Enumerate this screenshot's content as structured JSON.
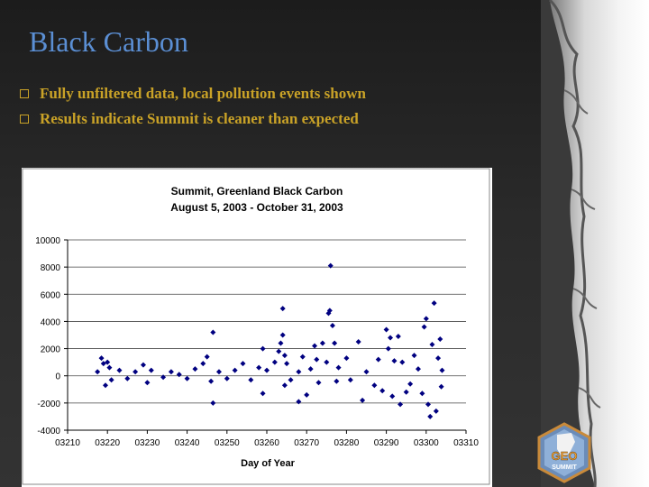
{
  "slide": {
    "title": "Black Carbon",
    "bullets": [
      "Fully unfiltered data, local pollution events shown",
      "Results indicate Summit is cleaner than expected"
    ]
  },
  "logo": {
    "word_top": "GEO",
    "word_bottom": "SUMMIT"
  },
  "colors": {
    "title": "#5b8fd4",
    "bullet": "#c9a227",
    "series": "#000080"
  },
  "chart_data": {
    "type": "scatter",
    "title": "Summit, Greenland Black Carbon",
    "subtitle": "August 5, 2003 - October 31, 2003",
    "xlabel": "Day of Year",
    "ylabel": "",
    "xlim": [
      3210,
      3310
    ],
    "ylim": [
      -4000,
      10000
    ],
    "x_ticks": [
      3210,
      3220,
      3230,
      3240,
      3250,
      3260,
      3270,
      3280,
      3290,
      3300,
      3310
    ],
    "x_tick_labels": [
      "03210",
      "03220",
      "03230",
      "03240",
      "03250",
      "03260",
      "03270",
      "03280",
      "03290",
      "03300",
      "03310"
    ],
    "y_ticks": [
      -4000,
      -2000,
      0,
      2000,
      4000,
      6000,
      8000,
      10000
    ],
    "y_tick_labels": [
      "-4000",
      "-2000",
      "0",
      "2000",
      "4000",
      "6000",
      "8000",
      "10000"
    ],
    "grid": "horizontal",
    "legend": "none",
    "series": [
      {
        "marker": "diamond",
        "points": [
          [
            3217.5,
            300
          ],
          [
            3218.5,
            1300
          ],
          [
            3219,
            900
          ],
          [
            3219.5,
            -700
          ],
          [
            3220,
            1000
          ],
          [
            3220.5,
            600
          ],
          [
            3221,
            -300
          ],
          [
            3223,
            400
          ],
          [
            3225,
            -200
          ],
          [
            3227,
            300
          ],
          [
            3229,
            800
          ],
          [
            3230,
            -500
          ],
          [
            3231,
            400
          ],
          [
            3234,
            -100
          ],
          [
            3236,
            300
          ],
          [
            3238,
            100
          ],
          [
            3240,
            -200
          ],
          [
            3242,
            500
          ],
          [
            3244,
            900
          ],
          [
            3245,
            1400
          ],
          [
            3246,
            -400
          ],
          [
            3246.5,
            3200
          ],
          [
            3246.5,
            -2000
          ],
          [
            3248,
            300
          ],
          [
            3250,
            -200
          ],
          [
            3252,
            400
          ],
          [
            3254,
            900
          ],
          [
            3256,
            -300
          ],
          [
            3258,
            600
          ],
          [
            3259,
            2000
          ],
          [
            3259,
            -1300
          ],
          [
            3260,
            400
          ],
          [
            3262,
            1000
          ],
          [
            3263,
            1800
          ],
          [
            3263.5,
            2400
          ],
          [
            3264,
            4950
          ],
          [
            3264,
            3000
          ],
          [
            3264.5,
            1500
          ],
          [
            3264.5,
            -700
          ],
          [
            3265,
            900
          ],
          [
            3266,
            -300
          ],
          [
            3268,
            -1900
          ],
          [
            3268,
            300
          ],
          [
            3269,
            1400
          ],
          [
            3270,
            -1400
          ],
          [
            3271,
            500
          ],
          [
            3272,
            2200
          ],
          [
            3272.5,
            1200
          ],
          [
            3273,
            -500
          ],
          [
            3274,
            2400
          ],
          [
            3275,
            1000
          ],
          [
            3275.5,
            4600
          ],
          [
            3275.8,
            4800
          ],
          [
            3276,
            8100
          ],
          [
            3276.5,
            3700
          ],
          [
            3277,
            2400
          ],
          [
            3277.5,
            -400
          ],
          [
            3278,
            600
          ],
          [
            3280,
            1300
          ],
          [
            3281,
            -300
          ],
          [
            3283,
            2500
          ],
          [
            3284,
            -1800
          ],
          [
            3285,
            300
          ],
          [
            3287,
            -700
          ],
          [
            3288,
            1200
          ],
          [
            3289,
            -1100
          ],
          [
            3290,
            3400
          ],
          [
            3290.5,
            2000
          ],
          [
            3291,
            2800
          ],
          [
            3291.5,
            -1500
          ],
          [
            3292,
            1100
          ],
          [
            3293,
            2900
          ],
          [
            3293.5,
            -2100
          ],
          [
            3294,
            1000
          ],
          [
            3295,
            -1200
          ],
          [
            3296,
            -600
          ],
          [
            3297,
            1500
          ],
          [
            3298,
            500
          ],
          [
            3299,
            -1300
          ],
          [
            3299.5,
            3600
          ],
          [
            3300,
            4200
          ],
          [
            3300.5,
            -2100
          ],
          [
            3301,
            -3000
          ],
          [
            3301.5,
            2300
          ],
          [
            3302,
            5350
          ],
          [
            3302.5,
            -2600
          ],
          [
            3303,
            1300
          ],
          [
            3303.5,
            2700
          ],
          [
            3303.8,
            -800
          ],
          [
            3304,
            400
          ]
        ]
      }
    ]
  }
}
